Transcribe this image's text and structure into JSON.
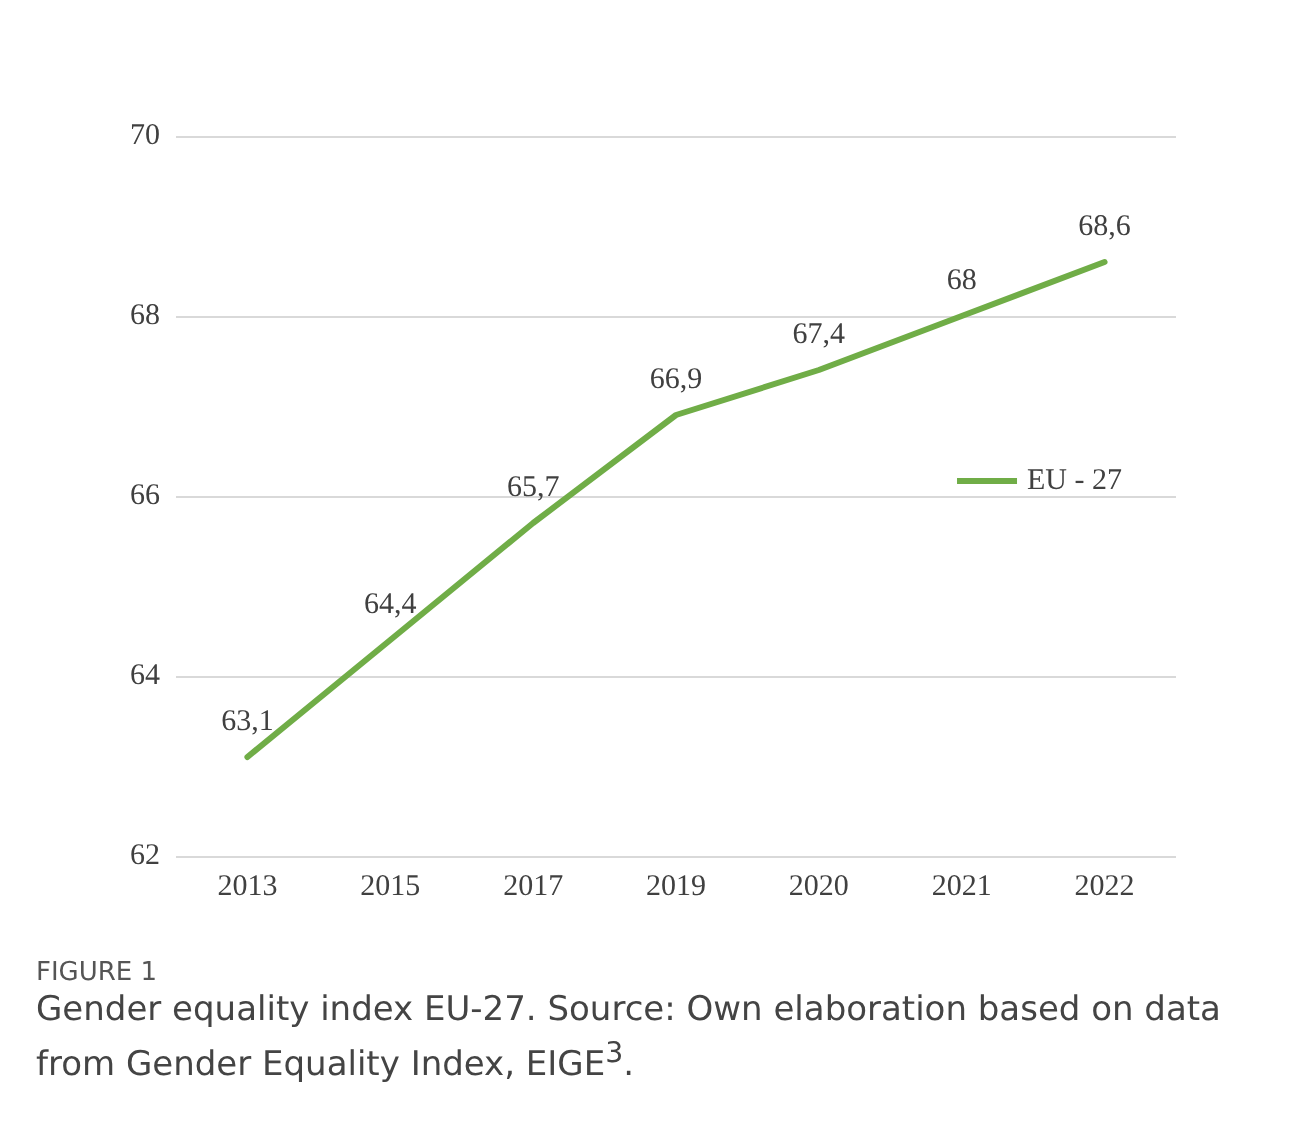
{
  "chart_data": {
    "type": "line",
    "categories": [
      "2013",
      "2015",
      "2017",
      "2019",
      "2020",
      "2021",
      "2022"
    ],
    "series": [
      {
        "name": "EU - 27",
        "color": "#70ad47",
        "values": [
          63.1,
          64.4,
          65.7,
          66.9,
          67.4,
          68,
          68.6
        ],
        "value_labels": [
          "63,1",
          "64,4",
          "65,7",
          "66,9",
          "67,4",
          "68",
          "68,6"
        ]
      }
    ],
    "ylim": [
      62,
      70
    ],
    "yticks": [
      62,
      64,
      66,
      68,
      70
    ],
    "grid": "y",
    "legend": "right",
    "marker": "none",
    "line_style": "solid",
    "annotations": [
      "FIGURE 1",
      "Gender equality index EU-27. Source: Own elaboration based on data from Gender Equality Index, EIGE$^{3}$."
    ]
  }
}
